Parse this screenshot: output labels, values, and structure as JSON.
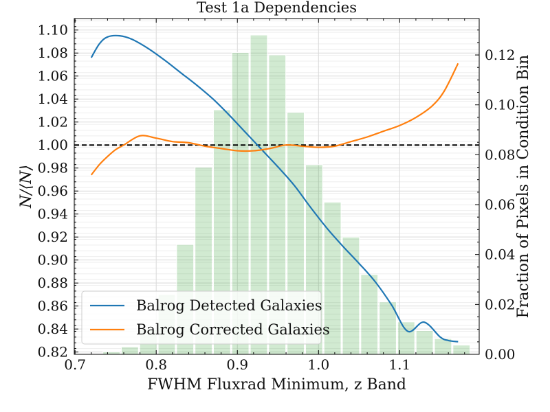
{
  "chart_data": {
    "type": "line",
    "title": "Test 1a Dependencies",
    "xlabel": "FWHM Fluxrad Minimum, z Band",
    "ylabel": "N/⟨N⟩",
    "y2label": "Fraction of Pixels in Condition Bin",
    "xlim": [
      0.699,
      1.198
    ],
    "ylim": [
      0.818,
      1.11
    ],
    "y2lim": [
      0.0,
      0.1346
    ],
    "xticks": [
      "0.7",
      "0.8",
      "0.9",
      "1.0",
      "1.1"
    ],
    "yticks": [
      "0.82",
      "0.84",
      "0.86",
      "0.88",
      "0.90",
      "0.92",
      "0.94",
      "0.96",
      "0.98",
      "1.00",
      "1.02",
      "1.04",
      "1.06",
      "1.08",
      "1.10"
    ],
    "y2ticks": [
      "0.00",
      "0.02",
      "0.04",
      "0.06",
      "0.08",
      "0.10",
      "0.12"
    ],
    "grid": true,
    "reference_line": 1.0,
    "legend_position": "lower-left",
    "series": [
      {
        "name": "Balrog Detected Galaxies",
        "color": "#1f77b4",
        "x": [
          0.72,
          0.73,
          0.74,
          0.755,
          0.77,
          0.79,
          0.81,
          0.83,
          0.85,
          0.87,
          0.89,
          0.91,
          0.93,
          0.95,
          0.97,
          0.99,
          1.01,
          1.03,
          1.05,
          1.07,
          1.09,
          1.11,
          1.13,
          1.15,
          1.16,
          1.172
        ],
        "y": [
          1.076,
          1.088,
          1.094,
          1.095,
          1.092,
          1.084,
          1.074,
          1.063,
          1.052,
          1.04,
          1.026,
          1.011,
          0.996,
          0.981,
          0.965,
          0.946,
          0.928,
          0.912,
          0.897,
          0.881,
          0.861,
          0.838,
          0.846,
          0.833,
          0.83,
          0.829
        ]
      },
      {
        "name": "Balrog Corrected Galaxies",
        "color": "#ff7f0e",
        "x": [
          0.72,
          0.73,
          0.74,
          0.75,
          0.76,
          0.78,
          0.8,
          0.82,
          0.84,
          0.86,
          0.88,
          0.9,
          0.92,
          0.94,
          0.96,
          0.98,
          1.0,
          1.02,
          1.04,
          1.06,
          1.08,
          1.1,
          1.12,
          1.14,
          1.155,
          1.172
        ],
        "y": [
          0.974,
          0.983,
          0.99,
          0.996,
          1.0,
          1.008,
          1.006,
          1.003,
          1.002,
          0.999,
          0.997,
          0.995,
          0.995,
          0.997,
          1.0,
          0.999,
          0.998,
          0.999,
          1.003,
          1.007,
          1.012,
          1.017,
          1.024,
          1.034,
          1.047,
          1.071
        ]
      }
    ],
    "histogram": {
      "color": "#2ca02c",
      "bin_edges": [
        0.7335,
        0.7562,
        0.7789,
        0.8016,
        0.8243,
        0.847,
        0.8697,
        0.8924,
        0.9151,
        0.9378,
        0.9605,
        0.9832,
        1.0059,
        1.0286,
        1.0513,
        1.074,
        1.0967,
        1.1194,
        1.1421,
        1.1648,
        1.1875
      ],
      "fractions": [
        0.001,
        0.003,
        0.01,
        0.024,
        0.044,
        0.075,
        0.098,
        0.121,
        0.128,
        0.12,
        0.097,
        0.076,
        0.061,
        0.047,
        0.032,
        0.021,
        0.013,
        0.0095,
        0.0063,
        0.0037
      ]
    }
  }
}
